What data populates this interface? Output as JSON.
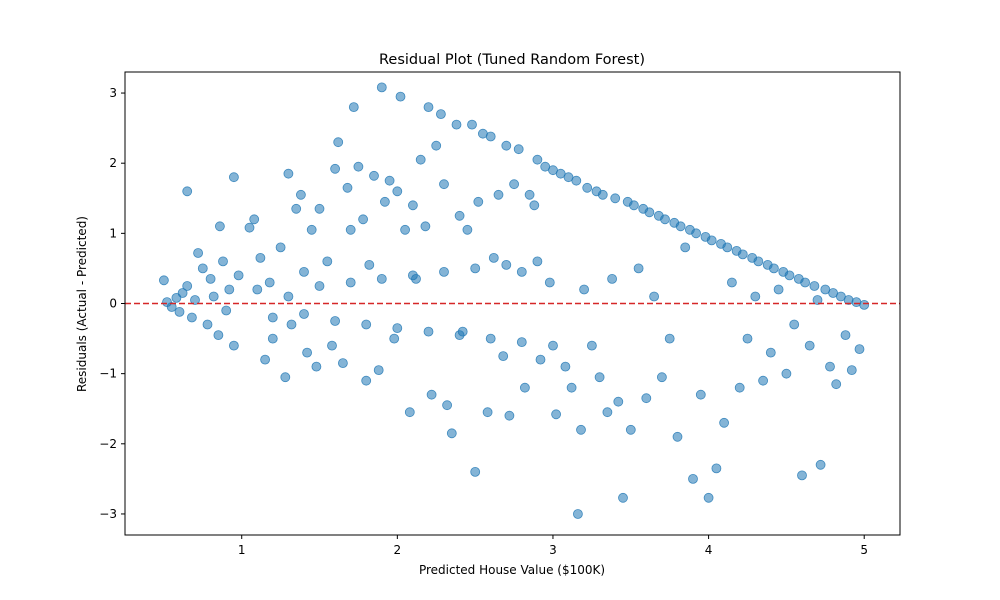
{
  "chart_data": {
    "type": "scatter",
    "title": "Residual Plot (Tuned Random Forest)",
    "xlabel": "Predicted House Value ($100K)",
    "ylabel": "Residuals (Actual - Predicted)",
    "xlim": [
      0.25,
      5.23
    ],
    "ylim": [
      -3.3,
      3.3
    ],
    "xticks": [
      1,
      2,
      3,
      4,
      5
    ],
    "yticks": [
      -3,
      -2,
      -1,
      0,
      1,
      2,
      3
    ],
    "grid": false,
    "point_color": "#1f77b4",
    "point_alpha": 0.55,
    "reference_line": {
      "y": 0,
      "color": "#d62728",
      "style": "dashed"
    },
    "points": [
      [
        0.5,
        0.33
      ],
      [
        0.52,
        0.02
      ],
      [
        0.55,
        -0.05
      ],
      [
        0.58,
        0.08
      ],
      [
        0.6,
        -0.12
      ],
      [
        0.62,
        0.15
      ],
      [
        0.65,
        0.25
      ],
      [
        0.68,
        -0.2
      ],
      [
        0.7,
        0.05
      ],
      [
        0.72,
        0.72
      ],
      [
        0.75,
        0.5
      ],
      [
        0.78,
        -0.3
      ],
      [
        0.8,
        0.35
      ],
      [
        0.82,
        0.1
      ],
      [
        0.85,
        -0.45
      ],
      [
        0.88,
        0.6
      ],
      [
        0.9,
        -0.1
      ],
      [
        0.92,
        0.2
      ],
      [
        0.95,
        -0.6
      ],
      [
        0.98,
        0.4
      ],
      [
        0.65,
        1.6
      ],
      [
        0.86,
        1.1
      ],
      [
        0.95,
        1.8
      ],
      [
        1.05,
        1.08
      ],
      [
        1.08,
        1.2
      ],
      [
        1.12,
        0.65
      ],
      [
        1.15,
        -0.8
      ],
      [
        1.18,
        0.3
      ],
      [
        1.2,
        -0.5
      ],
      [
        1.25,
        0.8
      ],
      [
        1.28,
        -1.05
      ],
      [
        1.3,
        1.85
      ],
      [
        1.32,
        -0.3
      ],
      [
        1.35,
        1.35
      ],
      [
        1.38,
        1.55
      ],
      [
        1.4,
        0.45
      ],
      [
        1.42,
        -0.7
      ],
      [
        1.45,
        1.05
      ],
      [
        1.48,
        -0.9
      ],
      [
        1.5,
        1.35
      ],
      [
        1.55,
        0.6
      ],
      [
        1.58,
        -0.6
      ],
      [
        1.6,
        1.92
      ],
      [
        1.62,
        2.3
      ],
      [
        1.65,
        -0.85
      ],
      [
        1.68,
        1.65
      ],
      [
        1.7,
        1.05
      ],
      [
        1.72,
        2.8
      ],
      [
        1.75,
        1.95
      ],
      [
        1.78,
        1.2
      ],
      [
        1.8,
        -1.1
      ],
      [
        1.82,
        0.55
      ],
      [
        1.85,
        1.82
      ],
      [
        1.88,
        -0.95
      ],
      [
        1.9,
        3.08
      ],
      [
        1.92,
        1.45
      ],
      [
        1.95,
        1.75
      ],
      [
        1.98,
        -0.5
      ],
      [
        2.0,
        1.6
      ],
      [
        2.02,
        2.95
      ],
      [
        2.05,
        1.05
      ],
      [
        2.08,
        -1.55
      ],
      [
        2.1,
        1.4
      ],
      [
        2.12,
        0.35
      ],
      [
        2.15,
        2.05
      ],
      [
        2.18,
        1.1
      ],
      [
        2.2,
        2.8
      ],
      [
        2.22,
        -1.3
      ],
      [
        2.25,
        2.25
      ],
      [
        2.28,
        2.7
      ],
      [
        2.3,
        1.7
      ],
      [
        2.32,
        -1.45
      ],
      [
        2.35,
        -1.85
      ],
      [
        2.38,
        2.55
      ],
      [
        2.4,
        1.25
      ],
      [
        2.42,
        -0.4
      ],
      [
        2.45,
        1.05
      ],
      [
        2.48,
        2.55
      ],
      [
        2.5,
        -2.4
      ],
      [
        2.52,
        1.45
      ],
      [
        2.55,
        2.42
      ],
      [
        2.58,
        -1.55
      ],
      [
        2.6,
        2.38
      ],
      [
        2.62,
        0.65
      ],
      [
        2.65,
        1.55
      ],
      [
        2.68,
        -0.75
      ],
      [
        2.7,
        2.25
      ],
      [
        2.72,
        -1.6
      ],
      [
        2.75,
        1.7
      ],
      [
        2.78,
        2.2
      ],
      [
        2.8,
        0.45
      ],
      [
        2.82,
        -1.2
      ],
      [
        2.85,
        1.55
      ],
      [
        2.88,
        1.4
      ],
      [
        2.9,
        2.05
      ],
      [
        2.92,
        -0.8
      ],
      [
        2.95,
        1.95
      ],
      [
        2.98,
        0.3
      ],
      [
        3.0,
        1.9
      ],
      [
        3.02,
        -1.58
      ],
      [
        3.05,
        1.85
      ],
      [
        3.08,
        -0.9
      ],
      [
        3.1,
        1.8
      ],
      [
        3.12,
        -1.2
      ],
      [
        3.15,
        1.75
      ],
      [
        3.16,
        -3.0
      ],
      [
        3.18,
        -1.8
      ],
      [
        3.2,
        0.2
      ],
      [
        3.22,
        1.65
      ],
      [
        3.25,
        -0.6
      ],
      [
        3.28,
        1.6
      ],
      [
        3.3,
        -1.05
      ],
      [
        3.32,
        1.55
      ],
      [
        3.35,
        -1.55
      ],
      [
        3.38,
        0.35
      ],
      [
        3.4,
        1.5
      ],
      [
        3.42,
        -1.4
      ],
      [
        3.45,
        -2.77
      ],
      [
        3.48,
        1.45
      ],
      [
        3.5,
        -1.8
      ],
      [
        3.52,
        1.4
      ],
      [
        3.55,
        0.5
      ],
      [
        3.58,
        1.35
      ],
      [
        3.6,
        -1.35
      ],
      [
        3.62,
        1.3
      ],
      [
        3.65,
        0.1
      ],
      [
        3.68,
        1.25
      ],
      [
        3.7,
        -1.05
      ],
      [
        3.72,
        1.2
      ],
      [
        3.75,
        -0.5
      ],
      [
        3.78,
        1.15
      ],
      [
        3.8,
        -1.9
      ],
      [
        3.82,
        1.1
      ],
      [
        3.85,
        0.8
      ],
      [
        3.88,
        1.05
      ],
      [
        3.9,
        -2.5
      ],
      [
        3.92,
        1.0
      ],
      [
        3.95,
        -1.3
      ],
      [
        3.98,
        0.95
      ],
      [
        4.0,
        -2.77
      ],
      [
        4.02,
        0.9
      ],
      [
        4.05,
        -2.35
      ],
      [
        4.08,
        0.85
      ],
      [
        4.1,
        -1.7
      ],
      [
        4.12,
        0.8
      ],
      [
        4.15,
        0.3
      ],
      [
        4.18,
        0.75
      ],
      [
        4.2,
        -1.2
      ],
      [
        4.22,
        0.7
      ],
      [
        4.25,
        -0.5
      ],
      [
        4.28,
        0.65
      ],
      [
        4.3,
        0.1
      ],
      [
        4.32,
        0.6
      ],
      [
        4.35,
        -1.1
      ],
      [
        4.38,
        0.55
      ],
      [
        4.4,
        -0.7
      ],
      [
        4.42,
        0.5
      ],
      [
        4.45,
        0.2
      ],
      [
        4.48,
        0.45
      ],
      [
        4.5,
        -1.0
      ],
      [
        4.52,
        0.4
      ],
      [
        4.55,
        -0.3
      ],
      [
        4.58,
        0.35
      ],
      [
        4.6,
        -2.45
      ],
      [
        4.62,
        0.3
      ],
      [
        4.65,
        -0.6
      ],
      [
        4.68,
        0.25
      ],
      [
        4.7,
        0.05
      ],
      [
        4.72,
        -2.3
      ],
      [
        4.75,
        0.2
      ],
      [
        4.78,
        -0.9
      ],
      [
        4.8,
        0.15
      ],
      [
        4.82,
        -1.15
      ],
      [
        4.85,
        0.1
      ],
      [
        4.88,
        -0.45
      ],
      [
        4.9,
        0.05
      ],
      [
        4.92,
        -0.95
      ],
      [
        4.95,
        0.02
      ],
      [
        4.97,
        -0.65
      ],
      [
        5.0,
        -0.02
      ],
      [
        1.1,
        0.2
      ],
      [
        1.2,
        -0.2
      ],
      [
        1.3,
        0.1
      ],
      [
        1.4,
        -0.15
      ],
      [
        1.5,
        0.25
      ],
      [
        1.6,
        -0.25
      ],
      [
        1.7,
        0.3
      ],
      [
        1.8,
        -0.3
      ],
      [
        1.9,
        0.35
      ],
      [
        2.0,
        -0.35
      ],
      [
        2.1,
        0.4
      ],
      [
        2.2,
        -0.4
      ],
      [
        2.3,
        0.45
      ],
      [
        2.4,
        -0.45
      ],
      [
        2.5,
        0.5
      ],
      [
        2.6,
        -0.5
      ],
      [
        2.7,
        0.55
      ],
      [
        2.8,
        -0.55
      ],
      [
        2.9,
        0.6
      ],
      [
        3.0,
        -0.6
      ]
    ]
  }
}
